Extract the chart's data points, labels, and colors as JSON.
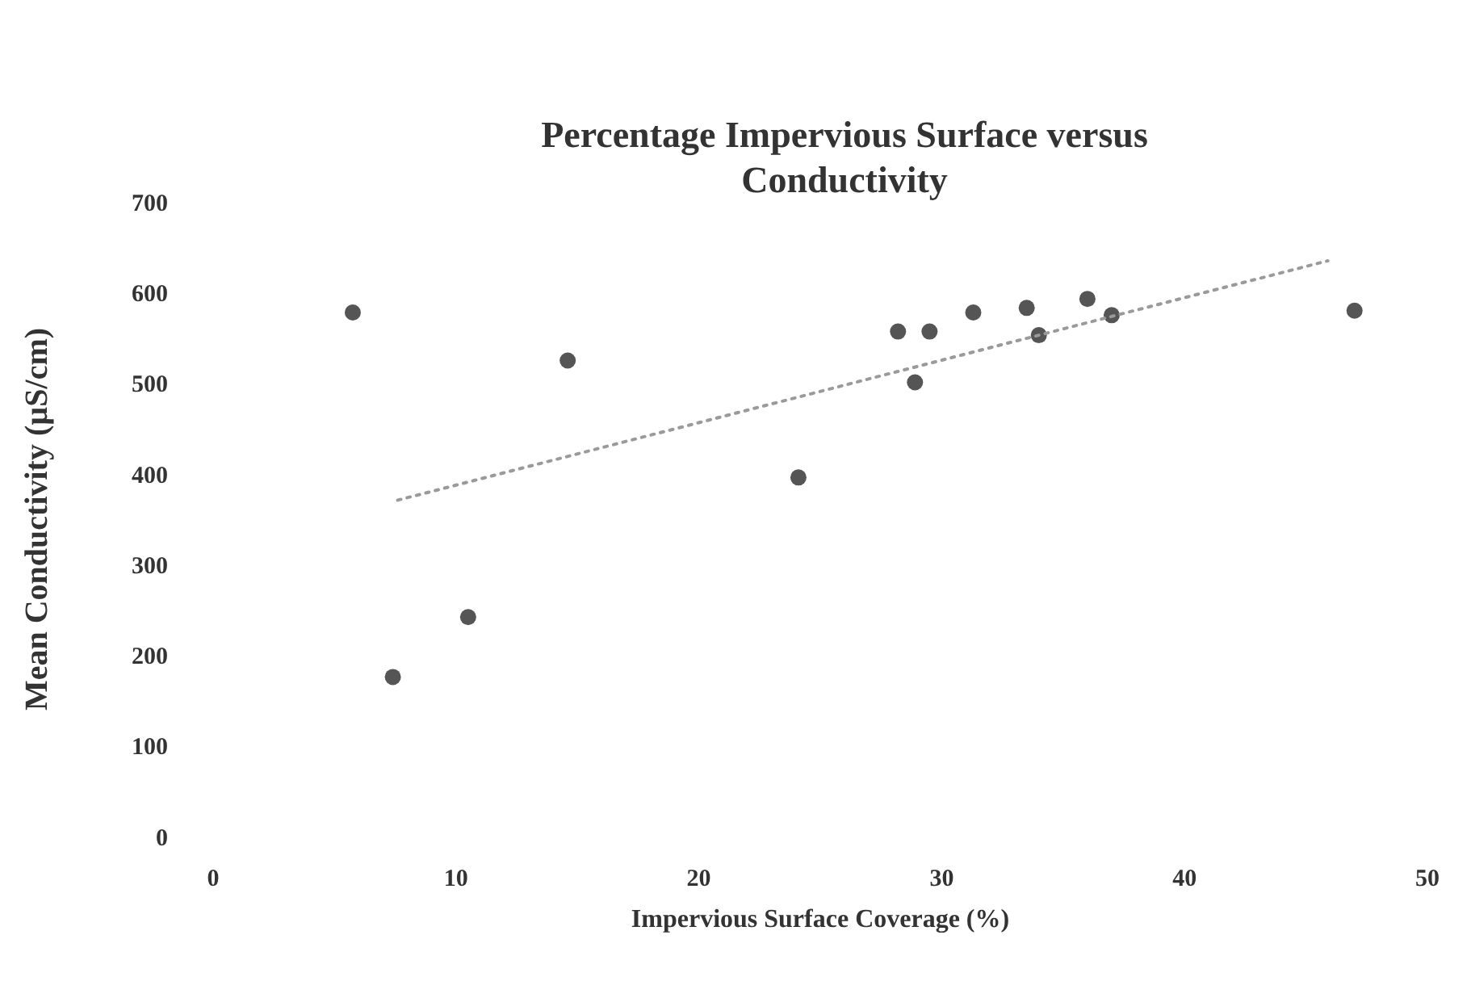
{
  "chart_data": {
    "type": "scatter",
    "title": "Percentage Impervious Surface versus Conductivity",
    "xlabel": "Impervious Surface Coverage (%)",
    "ylabel": "Mean Conductivity (µS/cm)",
    "xlim": [
      0,
      50
    ],
    "xticks": [
      0,
      10,
      20,
      30,
      40,
      50
    ],
    "ylim": [
      0,
      700
    ],
    "yticks": [
      0,
      100,
      200,
      300,
      400,
      500,
      600,
      700
    ],
    "grid": false,
    "marker": "circle",
    "series": [
      {
        "color": "#555555",
        "x": [
          5.75,
          7.4,
          10.5,
          14.6,
          24.1,
          28.2,
          28.9,
          29.5,
          31.3,
          33.5,
          34.0,
          36.0,
          37.0,
          47.0
        ],
        "values": [
          578,
          176,
          242,
          525,
          396,
          557,
          501,
          557,
          578,
          583,
          553,
          593,
          575,
          580
        ]
      },
      {
        "type": "line",
        "color": "#9a9a9a",
        "line_style": "dotted",
        "marker": "none",
        "x": [
          7.6,
          45.9
        ],
        "values": [
          371,
          635
        ]
      }
    ]
  }
}
